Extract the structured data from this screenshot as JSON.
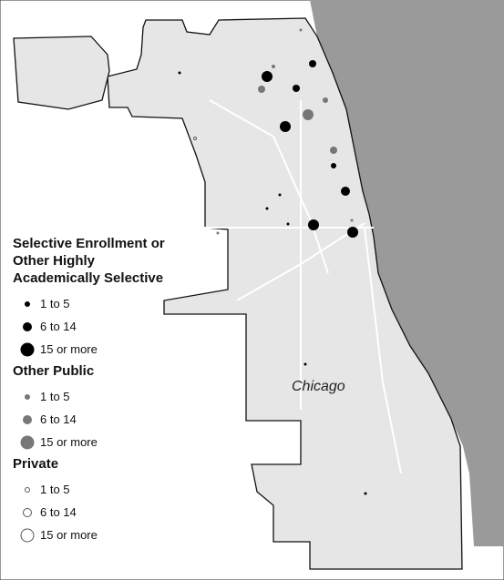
{
  "map": {
    "label": "Chicago",
    "legend": [
      {
        "title": "Selective Enrollment or Other Highly Academically Selective",
        "items": [
          "1 to 5",
          "6 to 14",
          "15 or more"
        ]
      },
      {
        "title": "Other Public",
        "items": [
          "1 to 5",
          "6 to 14",
          "15 or more"
        ]
      },
      {
        "title": "Private",
        "items": [
          "1 to 5",
          "6 to 14",
          "15 or more"
        ]
      }
    ]
  }
}
